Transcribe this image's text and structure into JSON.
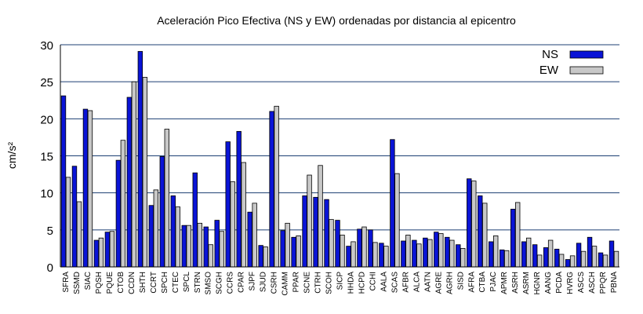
{
  "chart_data": {
    "type": "bar",
    "title": "Aceleración Pico Efectiva (NS y EW) ordenadas por distancia al epicentro",
    "ylabel": "cm/s²",
    "xlabel": "",
    "ylim": [
      0,
      30
    ],
    "yticks": [
      0,
      5,
      10,
      15,
      20,
      25,
      30
    ],
    "grid": "horizontal",
    "legend_position": "top-right",
    "categories": [
      "SFRA",
      "SSMD",
      "SIAC",
      "PQSH",
      "PQUE",
      "CTOB",
      "CCDN",
      "SHTH",
      "CCRT",
      "SPCH",
      "CTEC",
      "SPCL",
      "STRN",
      "SMSO",
      "SCGH",
      "CCRS",
      "CPAR",
      "SJPF",
      "SJUD",
      "CSRH",
      "CAMM",
      "PPAR",
      "SCNE",
      "CTRH",
      "SCOH",
      "SICP",
      "HHDA",
      "HCPD",
      "CCHI",
      "AALA",
      "SCAS",
      "AFBR",
      "ALCA",
      "AATN",
      "AGRE",
      "AGRH",
      "SISD",
      "AFRA",
      "CTBA",
      "PJAC",
      "APMR",
      "ASRH",
      "ASRM",
      "HGNR",
      "AANG",
      "PCDA",
      "HVRG",
      "ASCS",
      "ASCH",
      "PPQR",
      "PBNA"
    ],
    "series": [
      {
        "name": "NS",
        "color": "#0a14d6",
        "values": [
          23.1,
          13.6,
          21.3,
          3.6,
          4.7,
          14.4,
          22.9,
          29.1,
          8.3,
          14.9,
          9.6,
          5.6,
          12.7,
          5.4,
          6.3,
          16.9,
          18.3,
          7.4,
          2.9,
          21.0,
          4.9,
          4.0,
          9.6,
          9.4,
          9.1,
          6.3,
          2.8,
          5.1,
          5.0,
          3.2,
          17.2,
          3.5,
          3.6,
          3.9,
          4.7,
          4.0,
          3.0,
          11.9,
          9.6,
          3.4,
          2.3,
          7.8,
          3.4,
          3.0,
          2.6,
          2.4,
          1.0,
          3.2,
          4.0,
          1.9,
          3.5
        ]
      },
      {
        "name": "EW",
        "color": "#c8c8c8",
        "values": [
          12.1,
          8.8,
          21.1,
          3.9,
          4.8,
          17.1,
          25.0,
          25.6,
          10.4,
          18.6,
          8.1,
          5.6,
          5.9,
          3.0,
          4.8,
          11.5,
          14.1,
          8.6,
          2.7,
          21.7,
          5.9,
          4.2,
          12.4,
          13.7,
          6.4,
          4.3,
          3.4,
          5.4,
          3.3,
          2.8,
          12.6,
          4.3,
          3.1,
          3.7,
          4.5,
          3.6,
          2.5,
          11.6,
          8.6,
          4.2,
          2.2,
          8.7,
          3.9,
          1.6,
          3.6,
          1.7,
          1.5,
          2.1,
          2.8,
          1.6,
          2.1
        ]
      }
    ]
  }
}
